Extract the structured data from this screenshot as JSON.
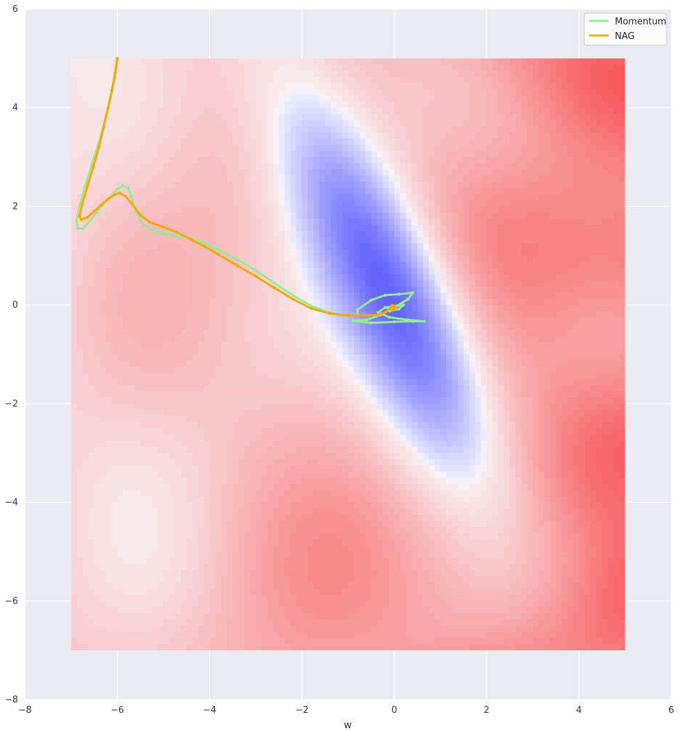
{
  "chart_data": {
    "type": "line",
    "title": "",
    "xlabel": "w",
    "ylabel": "",
    "xlim": [
      -8,
      6
    ],
    "ylim": [
      -8,
      6
    ],
    "x_ticks": [
      "−8",
      "−6",
      "−4",
      "−2",
      "0",
      "2",
      "4",
      "6"
    ],
    "y_ticks": [
      "−8",
      "−6",
      "−4",
      "−2",
      "0",
      "2",
      "4",
      "6"
    ],
    "grid": true,
    "legend_position": "top-right",
    "background": {
      "kind": "filled-contour",
      "x_range": [
        -7,
        5
      ],
      "y_range": [
        -7,
        5
      ],
      "colormap": "bwr",
      "minimum_near": [
        0,
        0
      ]
    },
    "series": [
      {
        "name": "Momentum",
        "color": "#90ee90",
        "points": [
          [
            -6.0,
            5.0
          ],
          [
            -6.05,
            4.6
          ],
          [
            -6.15,
            4.2
          ],
          [
            -6.25,
            3.8
          ],
          [
            -6.4,
            3.3
          ],
          [
            -6.55,
            2.85
          ],
          [
            -6.7,
            2.4
          ],
          [
            -6.82,
            2.0
          ],
          [
            -6.88,
            1.7
          ],
          [
            -6.86,
            1.55
          ],
          [
            -6.75,
            1.55
          ],
          [
            -6.6,
            1.7
          ],
          [
            -6.45,
            1.88
          ],
          [
            -6.3,
            2.05
          ],
          [
            -6.15,
            2.2
          ],
          [
            -6.0,
            2.35
          ],
          [
            -5.88,
            2.42
          ],
          [
            -5.77,
            2.38
          ],
          [
            -5.7,
            2.2
          ],
          [
            -5.6,
            1.9
          ],
          [
            -5.45,
            1.65
          ],
          [
            -5.25,
            1.52
          ],
          [
            -5.0,
            1.45
          ],
          [
            -4.7,
            1.4
          ],
          [
            -4.4,
            1.35
          ],
          [
            -4.1,
            1.25
          ],
          [
            -3.8,
            1.12
          ],
          [
            -3.4,
            0.92
          ],
          [
            -3.0,
            0.7
          ],
          [
            -2.6,
            0.45
          ],
          [
            -2.2,
            0.2
          ],
          [
            -1.8,
            -0.02
          ],
          [
            -1.4,
            -0.15
          ],
          [
            -1.05,
            -0.22
          ],
          [
            -0.8,
            -0.2
          ],
          [
            -0.8,
            -0.1
          ],
          [
            -0.5,
            0.1
          ],
          [
            -0.2,
            0.2
          ],
          [
            0.1,
            0.22
          ],
          [
            0.4,
            0.25
          ],
          [
            0.3,
            0.12
          ],
          [
            0.0,
            -0.05
          ],
          [
            -0.3,
            -0.2
          ],
          [
            -0.6,
            -0.3
          ],
          [
            -0.9,
            -0.32
          ],
          [
            -0.5,
            -0.36
          ],
          [
            0.0,
            -0.34
          ],
          [
            0.4,
            -0.33
          ],
          [
            0.65,
            -0.33
          ],
          [
            0.3,
            -0.3
          ],
          [
            -0.1,
            -0.25
          ],
          [
            -0.35,
            -0.15
          ],
          [
            -0.2,
            -0.05
          ],
          [
            0.05,
            -0.02
          ],
          [
            0.2,
            0.0
          ],
          [
            0.1,
            -0.08
          ],
          [
            -0.1,
            -0.12
          ],
          [
            -0.15,
            -0.05
          ],
          [
            -0.05,
            -0.02
          ],
          [
            0.0,
            -0.05
          ]
        ]
      },
      {
        "name": "NAG",
        "color": "#ffa500",
        "points": [
          [
            -6.0,
            5.0
          ],
          [
            -6.05,
            4.7
          ],
          [
            -6.12,
            4.35
          ],
          [
            -6.2,
            4.0
          ],
          [
            -6.3,
            3.6
          ],
          [
            -6.4,
            3.2
          ],
          [
            -6.52,
            2.8
          ],
          [
            -6.65,
            2.4
          ],
          [
            -6.76,
            2.05
          ],
          [
            -6.82,
            1.8
          ],
          [
            -6.78,
            1.73
          ],
          [
            -6.65,
            1.78
          ],
          [
            -6.5,
            1.9
          ],
          [
            -6.35,
            2.03
          ],
          [
            -6.2,
            2.15
          ],
          [
            -6.05,
            2.24
          ],
          [
            -5.95,
            2.27
          ],
          [
            -5.82,
            2.2
          ],
          [
            -5.68,
            2.05
          ],
          [
            -5.5,
            1.82
          ],
          [
            -5.3,
            1.68
          ],
          [
            -5.0,
            1.58
          ],
          [
            -4.7,
            1.47
          ],
          [
            -4.4,
            1.33
          ],
          [
            -4.1,
            1.18
          ],
          [
            -3.8,
            1.02
          ],
          [
            -3.4,
            0.8
          ],
          [
            -3.0,
            0.58
          ],
          [
            -2.6,
            0.35
          ],
          [
            -2.2,
            0.12
          ],
          [
            -1.8,
            -0.07
          ],
          [
            -1.4,
            -0.17
          ],
          [
            -1.0,
            -0.21
          ],
          [
            -0.6,
            -0.21
          ],
          [
            -0.35,
            -0.2
          ],
          [
            -0.2,
            -0.15
          ],
          [
            -0.1,
            -0.08
          ],
          [
            -0.05,
            -0.03
          ],
          [
            0.0,
            -0.02
          ],
          [
            0.02,
            -0.06
          ],
          [
            -0.03,
            -0.1
          ],
          [
            -0.08,
            -0.06
          ],
          [
            -0.04,
            -0.01
          ],
          [
            0.0,
            -0.04
          ]
        ]
      }
    ]
  }
}
